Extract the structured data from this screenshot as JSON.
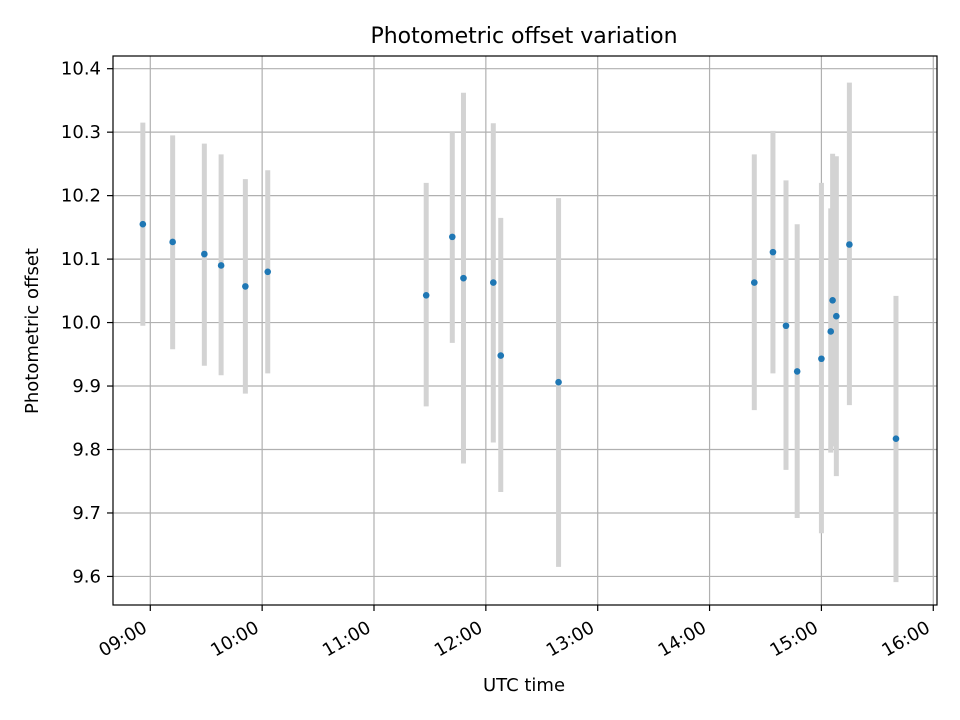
{
  "chart_data": {
    "type": "scatter",
    "title": "Photometric offset variation",
    "xlabel": "UTC time",
    "ylabel": "Photometric offset",
    "xlim": [
      "08:40",
      "16:02"
    ],
    "ylim": [
      9.555,
      10.42
    ],
    "x_ticks": [
      "09:00",
      "10:00",
      "11:00",
      "12:00",
      "13:00",
      "14:00",
      "15:00",
      "16:00"
    ],
    "y_ticks": [
      "9.6",
      "9.7",
      "9.8",
      "9.9",
      "10.0",
      "10.1",
      "10.2",
      "10.3",
      "10.4"
    ],
    "grid": true,
    "series": [
      {
        "colors": {
          "point": "#1f77b4",
          "errorbar": "#d3d3d3"
        },
        "points": [
          {
            "x": "08:56",
            "y": 10.155,
            "ylo": 9.995,
            "yhi": 10.315
          },
          {
            "x": "09:12",
            "y": 10.127,
            "ylo": 9.958,
            "yhi": 10.295
          },
          {
            "x": "09:29",
            "y": 10.108,
            "ylo": 9.932,
            "yhi": 10.282
          },
          {
            "x": "09:38",
            "y": 10.09,
            "ylo": 9.917,
            "yhi": 10.265
          },
          {
            "x": "09:51",
            "y": 10.057,
            "ylo": 9.888,
            "yhi": 10.226
          },
          {
            "x": "10:03",
            "y": 10.08,
            "ylo": 9.92,
            "yhi": 10.24
          },
          {
            "x": "11:28",
            "y": 10.043,
            "ylo": 9.868,
            "yhi": 10.22
          },
          {
            "x": "11:42",
            "y": 10.135,
            "ylo": 9.968,
            "yhi": 10.3
          },
          {
            "x": "11:48",
            "y": 10.07,
            "ylo": 9.778,
            "yhi": 10.362
          },
          {
            "x": "12:04",
            "y": 10.063,
            "ylo": 9.811,
            "yhi": 10.314
          },
          {
            "x": "12:08",
            "y": 9.948,
            "ylo": 9.733,
            "yhi": 10.165
          },
          {
            "x": "12:39",
            "y": 9.906,
            "ylo": 9.615,
            "yhi": 10.196
          },
          {
            "x": "14:24",
            "y": 10.063,
            "ylo": 9.862,
            "yhi": 10.265
          },
          {
            "x": "14:34",
            "y": 10.111,
            "ylo": 9.92,
            "yhi": 10.302
          },
          {
            "x": "14:41",
            "y": 9.995,
            "ylo": 9.768,
            "yhi": 10.224
          },
          {
            "x": "14:47",
            "y": 9.923,
            "ylo": 9.692,
            "yhi": 10.155
          },
          {
            "x": "15:00",
            "y": 9.943,
            "ylo": 9.668,
            "yhi": 10.22
          },
          {
            "x": "15:05",
            "y": 9.986,
            "ylo": 9.795,
            "yhi": 10.18
          },
          {
            "x": "15:06",
            "y": 10.035,
            "ylo": 9.805,
            "yhi": 10.266
          },
          {
            "x": "15:08",
            "y": 10.01,
            "ylo": 9.758,
            "yhi": 10.262
          },
          {
            "x": "15:15",
            "y": 10.123,
            "ylo": 9.87,
            "yhi": 10.378
          },
          {
            "x": "15:40",
            "y": 9.817,
            "ylo": 9.591,
            "yhi": 10.042
          }
        ]
      }
    ]
  }
}
